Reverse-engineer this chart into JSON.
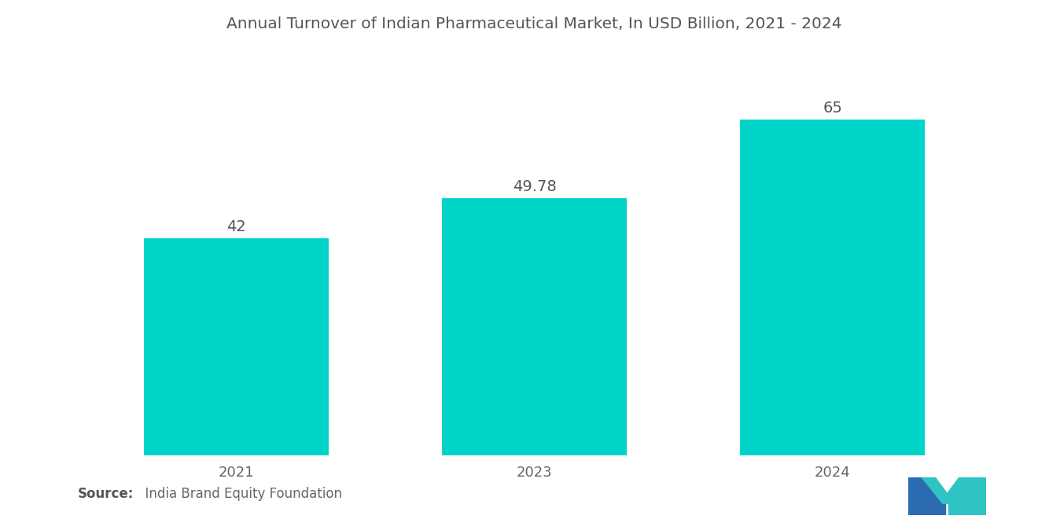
{
  "title": "Annual Turnover of Indian Pharmaceutical Market, In USD Billion, 2021 - 2024",
  "categories": [
    "2021",
    "2023",
    "2024"
  ],
  "values": [
    42,
    49.78,
    65
  ],
  "value_labels": [
    "42",
    "49.78",
    "65"
  ],
  "bar_color": "#00D4C8",
  "background_color": "#ffffff",
  "title_color": "#555555",
  "label_color": "#555555",
  "tick_color": "#666666",
  "source_bold": "Source:",
  "source_text": "  India Brand Equity Foundation",
  "ylim": [
    0,
    78
  ],
  "title_fontsize": 14.5,
  "label_fontsize": 14,
  "tick_fontsize": 13,
  "source_fontsize": 12,
  "bar_width": 0.62,
  "x_positions": [
    0,
    1,
    2
  ],
  "xlim": [
    -0.55,
    2.55
  ]
}
